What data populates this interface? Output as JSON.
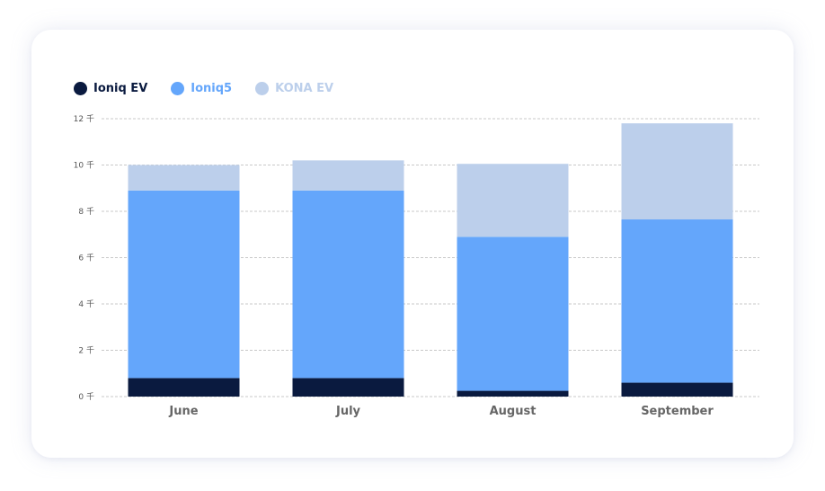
{
  "chart_data": {
    "type": "bar",
    "stacked": true,
    "categories": [
      "June",
      "July",
      "August",
      "September"
    ],
    "series": [
      {
        "name": "Ioniq EV",
        "color": "#0a1a3f",
        "values": [
          0.8,
          0.8,
          0.25,
          0.6
        ]
      },
      {
        "name": "Ioniq5",
        "color": "#64a6fb",
        "values": [
          8.1,
          8.1,
          6.65,
          7.05
        ]
      },
      {
        "name": "KONA EV",
        "color": "#bccfeb",
        "values": [
          1.1,
          1.3,
          3.15,
          4.15
        ]
      }
    ],
    "ylim": [
      0,
      12
    ],
    "yticks": [
      {
        "value": 0,
        "label": "0 千"
      },
      {
        "value": 2,
        "label": "2 千"
      },
      {
        "value": 4,
        "label": "4 千"
      },
      {
        "value": 6,
        "label": "6 千"
      },
      {
        "value": 8,
        "label": "8 千"
      },
      {
        "value": 10,
        "label": "10 千"
      },
      {
        "value": 12,
        "label": "12 千"
      }
    ],
    "grid": true,
    "legend_position": "top-left"
  }
}
